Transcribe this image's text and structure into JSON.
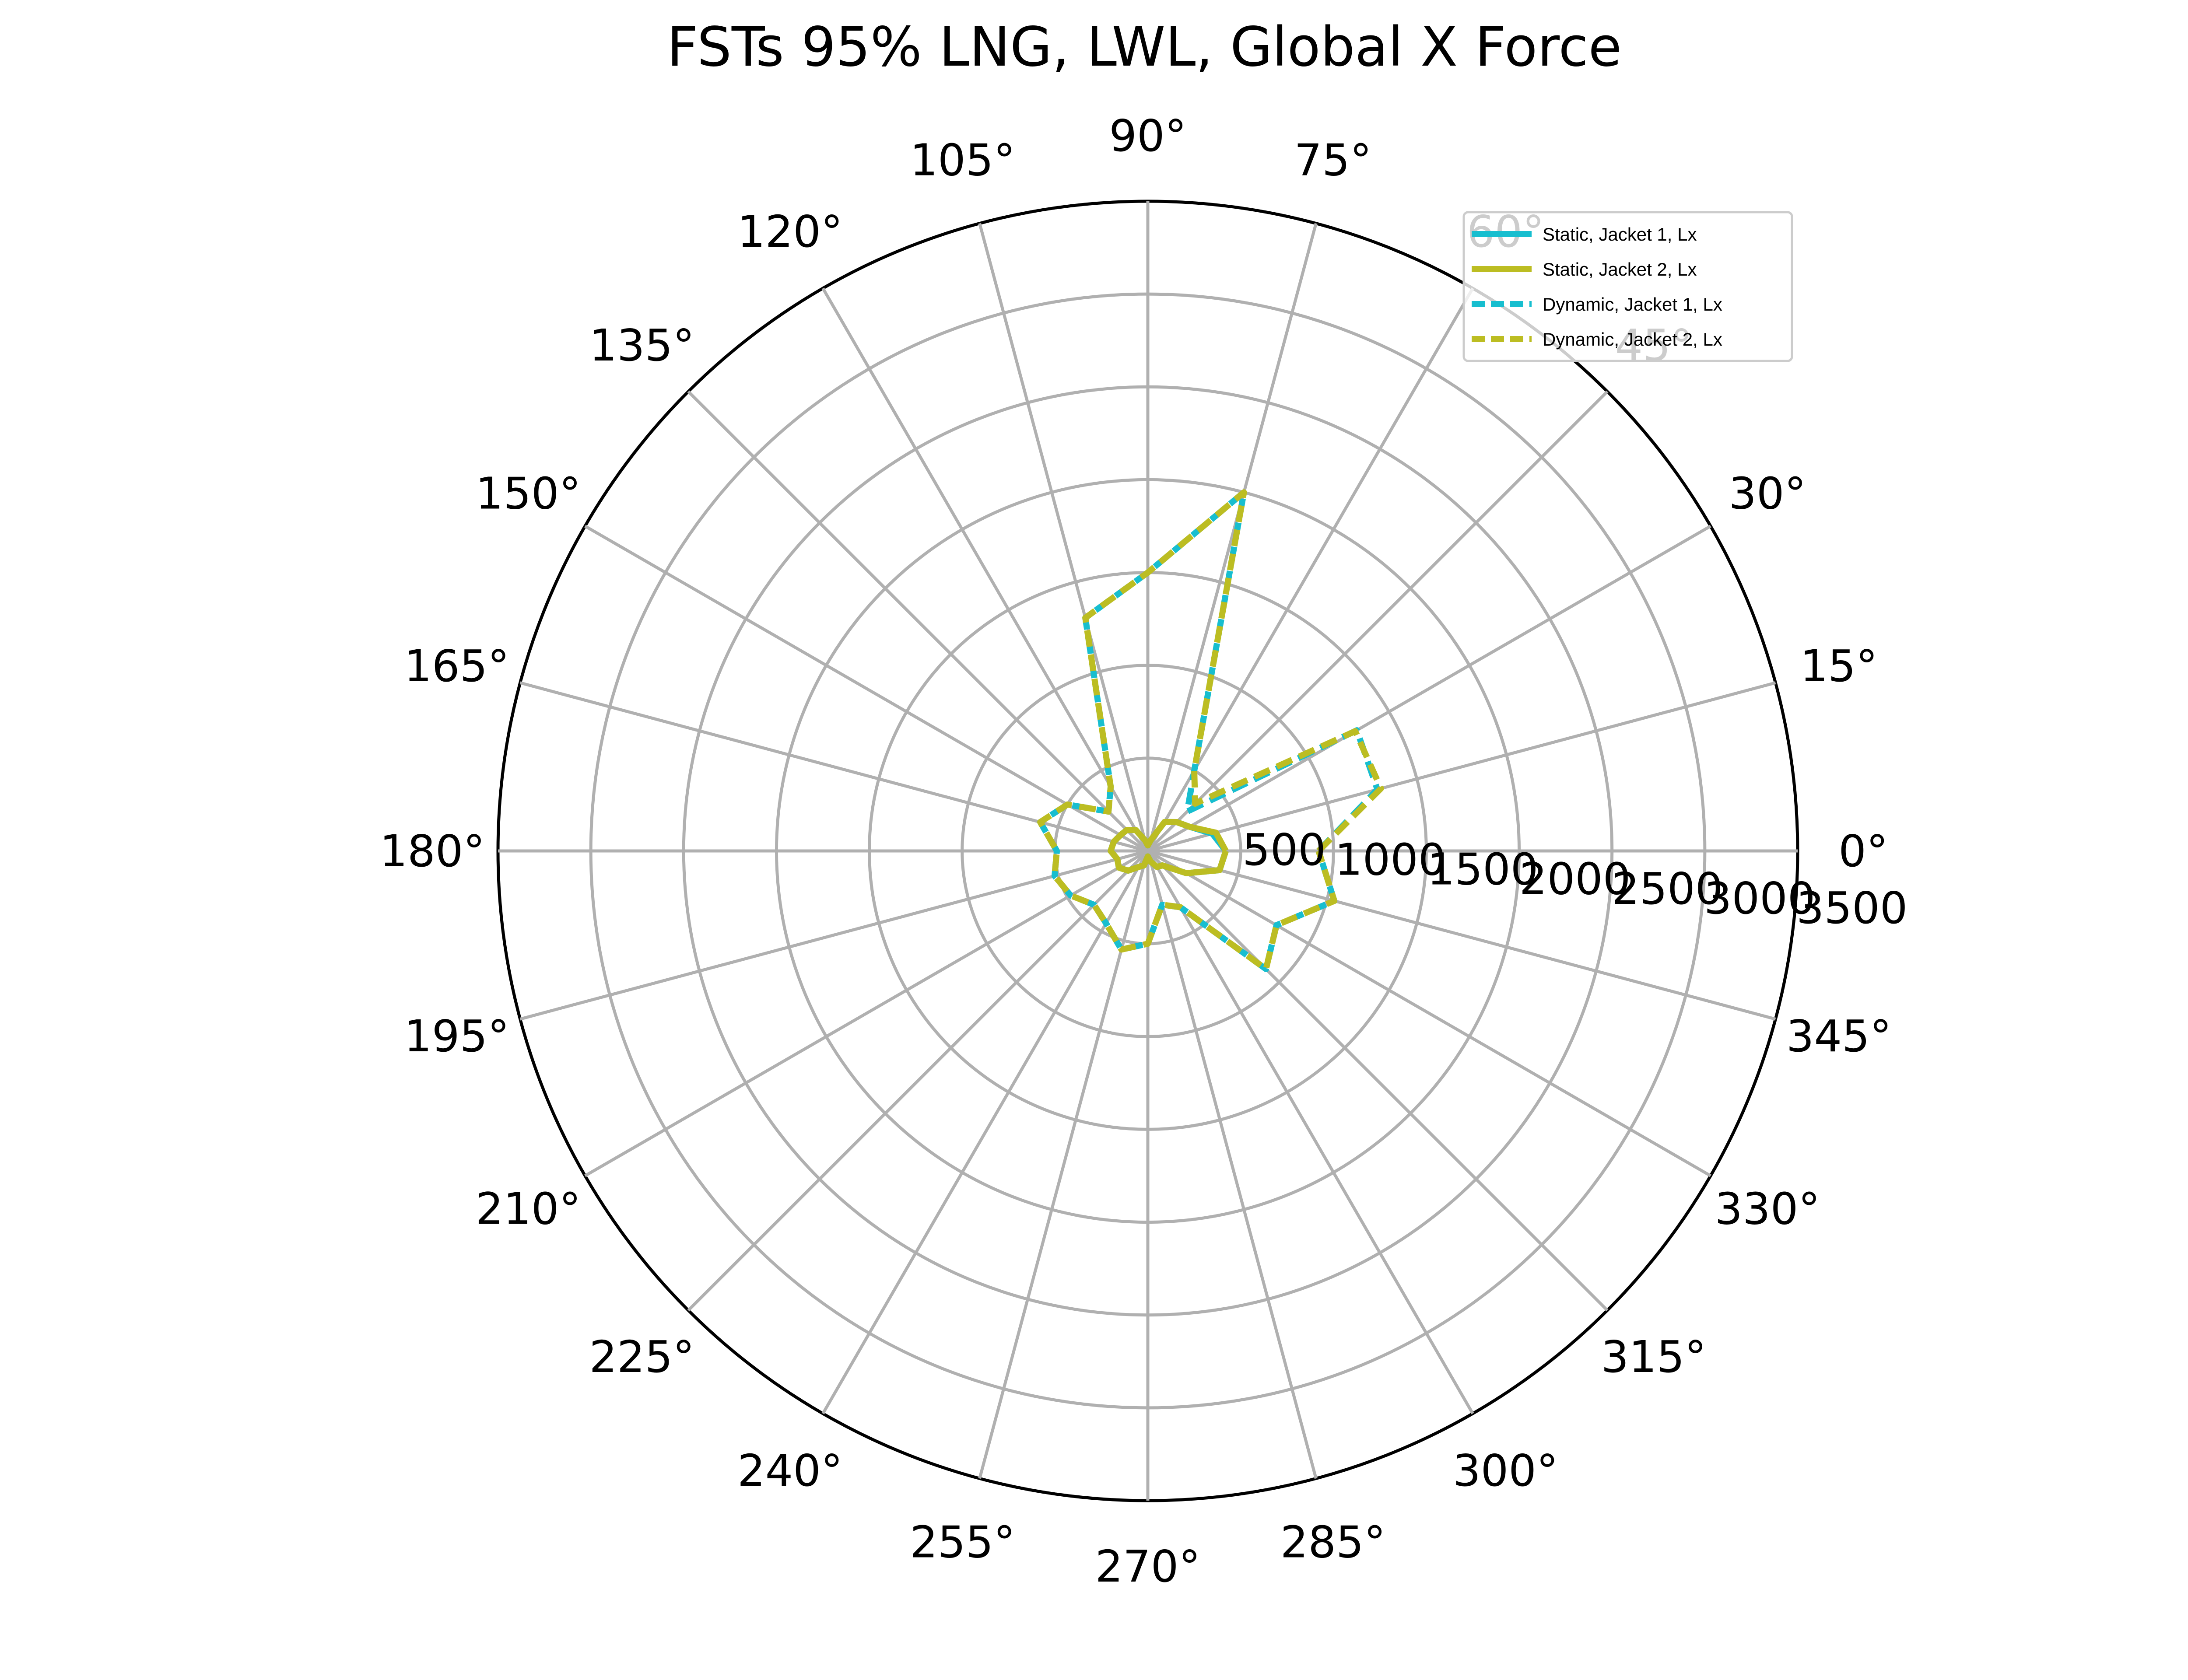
{
  "chart_data": {
    "type": "polar-line",
    "title": "FSTs 95% LNG, LWL, Global X Force",
    "angle_unit": "degrees",
    "theta_ticks": [
      0,
      15,
      30,
      45,
      60,
      75,
      90,
      105,
      120,
      135,
      150,
      165,
      180,
      195,
      210,
      225,
      240,
      255,
      270,
      285,
      300,
      315,
      330,
      345
    ],
    "theta_tick_labels": [
      "0°",
      "15°",
      "30°",
      "45°",
      "60°",
      "75°",
      "90°",
      "105°",
      "120°",
      "135°",
      "150°",
      "165°",
      "180°",
      "195°",
      "210°",
      "225°",
      "240°",
      "255°",
      "270°",
      "285°",
      "300°",
      "315°",
      "330°",
      "345°"
    ],
    "r_range": [
      0,
      3500
    ],
    "r_ticks": [
      500,
      1000,
      1500,
      2000,
      2500,
      3000,
      3500
    ],
    "r_tick_labels": [
      "500",
      "1000",
      "1500",
      "2000",
      "2500",
      "3000",
      "3500"
    ],
    "r_label_angle_deg": -6,
    "grid": true,
    "legend_position": "top-right",
    "series": [
      {
        "name": "Static, Jacket 1, Lx",
        "color": "#17becf",
        "line_style": "solid",
        "theta": [
          0,
          15,
          30,
          45,
          60,
          75,
          90,
          105,
          120,
          135,
          150,
          165,
          180,
          195,
          210,
          225,
          240,
          255,
          270,
          285,
          300,
          315,
          330,
          345,
          360
        ],
        "r": [
          420,
          360,
          260,
          220,
          180,
          60,
          30,
          60,
          130,
          160,
          170,
          190,
          200,
          170,
          180,
          150,
          100,
          80,
          30,
          60,
          100,
          110,
          240,
          400,
          420
        ]
      },
      {
        "name": "Static, Jacket 2, Lx",
        "color": "#bcbd22",
        "line_style": "solid",
        "theta": [
          0,
          15,
          30,
          45,
          60,
          75,
          90,
          105,
          120,
          135,
          150,
          165,
          180,
          195,
          210,
          225,
          240,
          255,
          270,
          285,
          300,
          315,
          330,
          345,
          360
        ],
        "r": [
          420,
          380,
          260,
          220,
          180,
          60,
          30,
          60,
          130,
          160,
          170,
          190,
          200,
          170,
          180,
          150,
          100,
          80,
          30,
          60,
          100,
          110,
          240,
          400,
          420
        ]
      },
      {
        "name": "Dynamic, Jacket 1, Lx",
        "color": "#17becf",
        "line_style": "dashed",
        "theta": [
          0,
          15,
          30,
          45,
          60,
          75,
          90,
          105,
          120,
          135,
          150,
          165,
          180,
          195,
          210,
          225,
          240,
          255,
          270,
          285,
          300,
          315,
          330,
          345,
          360
        ],
        "r": [
          920,
          1280,
          1300,
          300,
          500,
          2000,
          1500,
          1300,
          400,
          300,
          500,
          600,
          490,
          520,
          480,
          410,
          450,
          550,
          500,
          300,
          350,
          900,
          800,
          1040,
          920
        ]
      },
      {
        "name": "Dynamic, Jacket 2, Lx",
        "color": "#bcbd22",
        "line_style": "dashed",
        "theta": [
          0,
          15,
          30,
          45,
          60,
          75,
          90,
          105,
          120,
          135,
          150,
          165,
          180,
          195,
          210,
          225,
          240,
          255,
          270,
          285,
          300,
          315,
          330,
          345,
          360
        ],
        "r": [
          920,
          1300,
          1290,
          360,
          500,
          2000,
          1500,
          1300,
          400,
          300,
          500,
          600,
          490,
          520,
          480,
          410,
          450,
          550,
          500,
          300,
          350,
          900,
          800,
          1040,
          920
        ]
      }
    ]
  }
}
